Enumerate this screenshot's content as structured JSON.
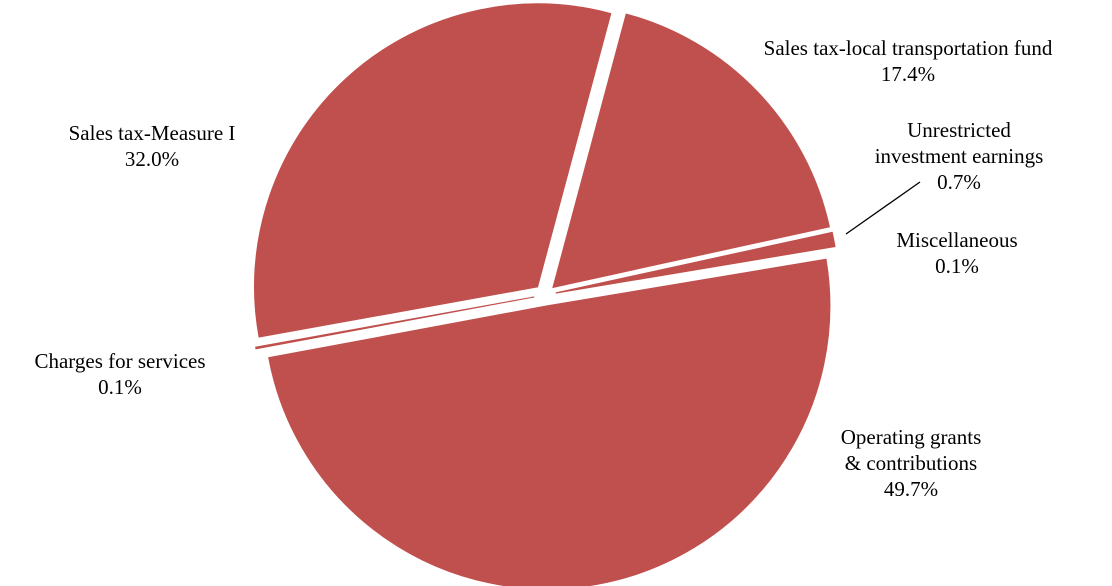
{
  "chart_data": {
    "type": "pie",
    "title": "",
    "slice_color": "#C0504D",
    "separator_color": "#ffffff",
    "slices": [
      {
        "label": "Sales tax-local transportation fund",
        "label_lines": [
          "Sales tax-local transportation fund"
        ],
        "value_text": "17.4%",
        "value": 17.4
      },
      {
        "label": "Unrestricted investment earnings",
        "label_lines": [
          "Unrestricted",
          "investment earnings"
        ],
        "value_text": "0.7%",
        "value": 0.7
      },
      {
        "label": "Miscellaneous",
        "label_lines": [
          "Miscellaneous"
        ],
        "value_text": "0.1%",
        "value": 0.1
      },
      {
        "label": "Operating grants & contributions",
        "label_lines": [
          "Operating grants",
          "& contributions"
        ],
        "value_text": "49.7%",
        "value": 49.7
      },
      {
        "label": "Charges for services",
        "label_lines": [
          "Charges for services"
        ],
        "value_text": "0.1%",
        "value": 0.1
      },
      {
        "label": "Sales tax-Measure I",
        "label_lines": [
          "Sales tax-Measure I"
        ],
        "value_text": "32.0%",
        "value": 32.0
      }
    ]
  }
}
